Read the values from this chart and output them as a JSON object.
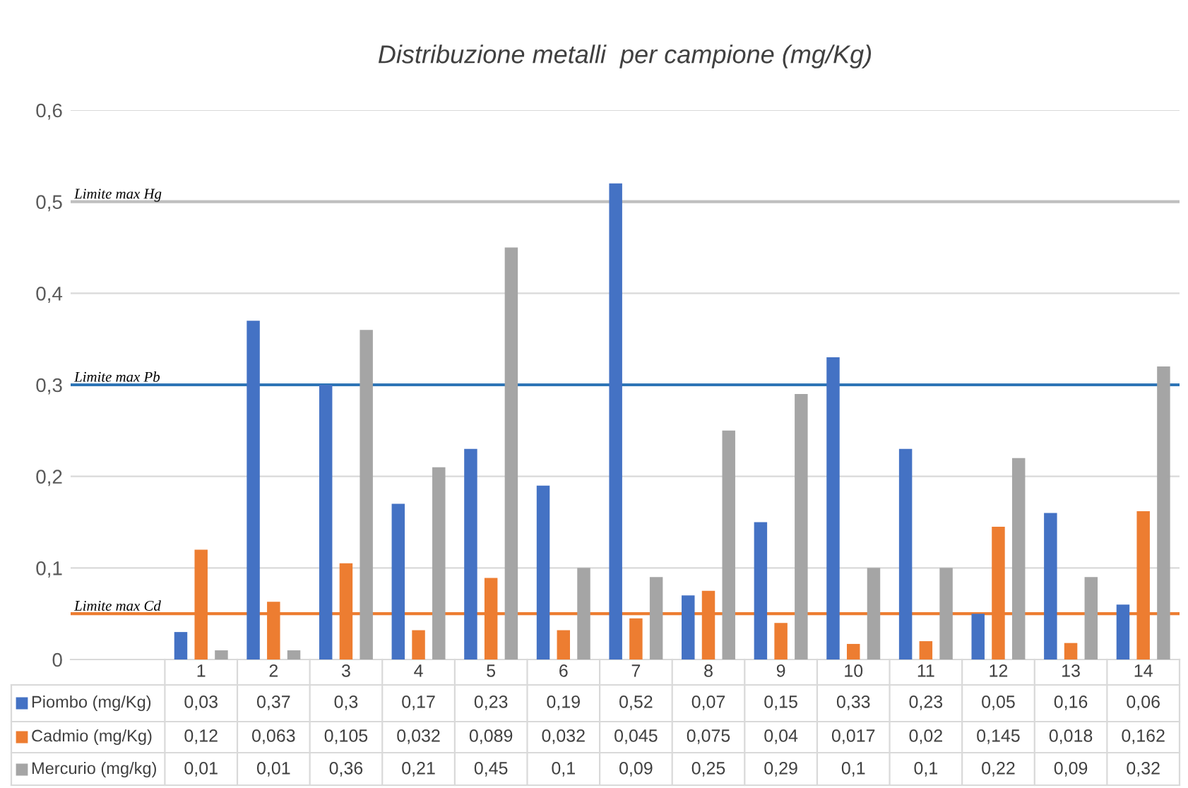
{
  "chart_data": {
    "type": "bar",
    "title": "Distribuzione metalli  per campione (mg/Kg)",
    "categories": [
      "1",
      "2",
      "3",
      "4",
      "5",
      "6",
      "7",
      "8",
      "9",
      "10",
      "11",
      "12",
      "13",
      "14"
    ],
    "series": [
      {
        "name": "Piombo (mg/Kg)",
        "color": "#4472c4",
        "values": [
          0.03,
          0.37,
          0.3,
          0.17,
          0.23,
          0.19,
          0.52,
          0.07,
          0.15,
          0.33,
          0.23,
          0.05,
          0.16,
          0.06
        ],
        "value_labels": [
          "0,03",
          "0,37",
          "0,3",
          "0,17",
          "0,23",
          "0,19",
          "0,52",
          "0,07",
          "0,15",
          "0,33",
          "0,23",
          "0,05",
          "0,16",
          "0,06"
        ]
      },
      {
        "name": "Cadmio (mg/Kg)",
        "color": "#ed7d31",
        "values": [
          0.12,
          0.063,
          0.105,
          0.032,
          0.089,
          0.032,
          0.045,
          0.075,
          0.04,
          0.017,
          0.02,
          0.145,
          0.018,
          0.162
        ],
        "value_labels": [
          "0,12",
          "0,063",
          "0,105",
          "0,032",
          "0,089",
          "0,032",
          "0,045",
          "0,075",
          "0,04",
          "0,017",
          "0,02",
          "0,145",
          "0,018",
          "0,162"
        ]
      },
      {
        "name": "Mercurio (mg/kg)",
        "color": "#a5a5a5",
        "values": [
          0.01,
          0.01,
          0.36,
          0.21,
          0.45,
          0.1,
          0.09,
          0.25,
          0.29,
          0.1,
          0.1,
          0.22,
          0.09,
          0.32
        ],
        "value_labels": [
          "0,01",
          "0,01",
          "0,36",
          "0,21",
          "0,45",
          "0,1",
          "0,09",
          "0,25",
          "0,29",
          "0,1",
          "0,1",
          "0,22",
          "0,09",
          "0,32"
        ]
      }
    ],
    "ylim": [
      0,
      0.6
    ],
    "yticks": [
      0,
      {
        "value": 0.1,
        "label": "0,1"
      },
      {
        "value": 0.2,
        "label": "0,2"
      },
      {
        "value": 0.3,
        "label": "0,3"
      },
      {
        "value": 0.4,
        "label": "0,4"
      },
      {
        "value": 0.5,
        "label": "0,5"
      },
      {
        "value": 0.6,
        "label": "0,6"
      }
    ],
    "grid": "y",
    "legend": "bottom",
    "ref_lines": [
      {
        "axis": "y",
        "value": 0.5,
        "label": "Limite max Hg",
        "color": "#bfbfbf"
      },
      {
        "axis": "y",
        "value": 0.3,
        "label": "Limite max Pb",
        "color": "#2e75b6"
      },
      {
        "axis": "y",
        "value": 0.05,
        "label": "Limite max Cd",
        "color": "#ed7d31"
      }
    ]
  }
}
